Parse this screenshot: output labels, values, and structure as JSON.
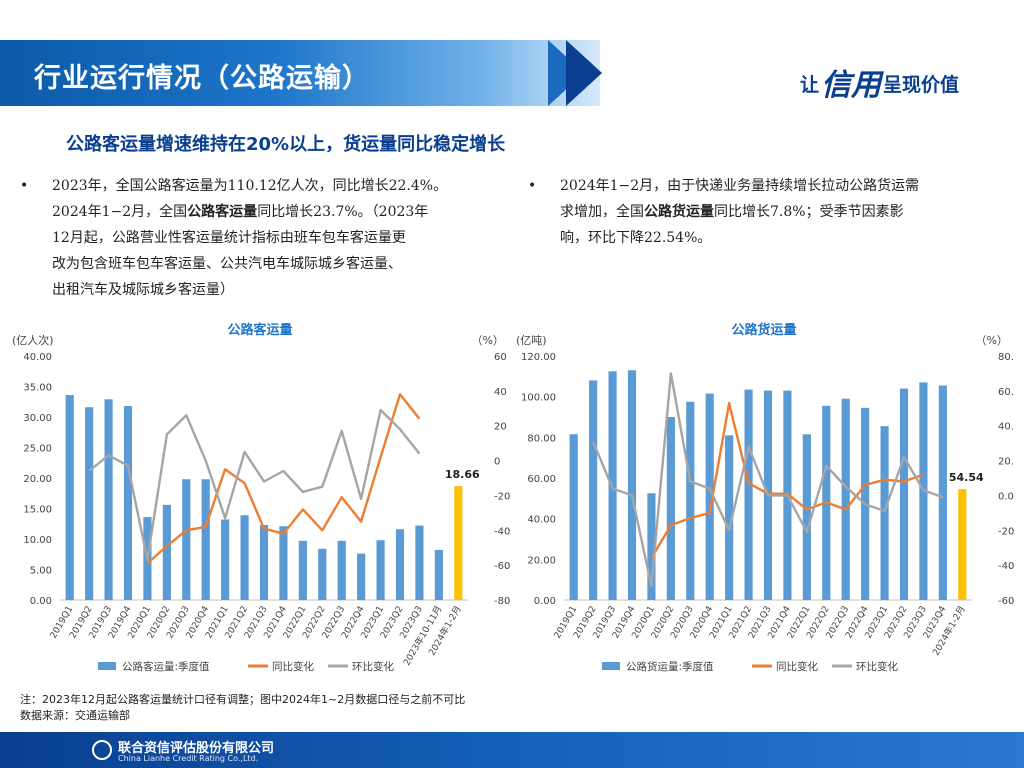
{
  "header": {
    "title": "行业运行情况（公路运输）"
  },
  "brand": {
    "prefix": "让",
    "big": "信用",
    "suffix": "呈现价值"
  },
  "subtitle": "公路客运量增速维持在20%以上，货运量同比稳定增长",
  "left_bullet": {
    "dot": "•",
    "line1": "2023年，全国公路客运量为110.12亿人次，同比增长22.4%。",
    "line2_pre": "2024年1−2月，全国",
    "line2_bold": "公路客运量",
    "line2_post": "同比增长23.7%。（2023年",
    "line3": "12月起，公路营业性客运量统计指标由班车包车客运量更",
    "line4": "改为包含班车包车客运量、公共汽电车城际城乡客运量、",
    "line5": "出租汽车及城际城乡客运量）"
  },
  "right_bullet": {
    "dot": "•",
    "line1": "2024年1−2月，由于快递业务量持续增长拉动公路货运需",
    "line2_pre": "求增加，全国",
    "line2_bold": "公路货运量",
    "line2_post": "同比增长7.8%；受季节因素影",
    "line3": "响，环比下降22.54%。"
  },
  "chart_data": [
    {
      "type": "bar",
      "title": "公路客运量",
      "ylabel_left": "(亿人次)",
      "ylabel_right": "（%）",
      "categories": [
        "2019Q1",
        "2019Q2",
        "2019Q3",
        "2019Q4",
        "2020Q1",
        "2020Q2",
        "2020Q3",
        "2020Q4",
        "2021Q1",
        "2021Q2",
        "2021Q3",
        "2021Q4",
        "2022Q1",
        "2022Q2",
        "2022Q3",
        "2022Q4",
        "2023Q1",
        "2023Q2",
        "2023Q3",
        "2023年10-11月",
        "2024年1-2月"
      ],
      "ylim_left": [
        0,
        40
      ],
      "yticks_left": [
        "0.00",
        "5.00",
        "10.00",
        "15.00",
        "20.00",
        "25.00",
        "30.00",
        "35.00",
        "40.00"
      ],
      "ylim_right": [
        -80,
        60
      ],
      "yticks_right": [
        "-80",
        "-60",
        "-40",
        "-20",
        "0",
        "20",
        "40",
        "60"
      ],
      "series": [
        {
          "name": "公路客运量:季度值",
          "axis": "left",
          "kind": "bar",
          "color": "#5b9bd5",
          "values": [
            33.6,
            31.6,
            32.9,
            31.8,
            13.6,
            15.6,
            19.8,
            19.8,
            13.2,
            13.9,
            12.3,
            12.1,
            9.7,
            8.4,
            9.7,
            7.6,
            9.8,
            11.6,
            12.2,
            8.2,
            18.66
          ]
        },
        {
          "name": "同比变化",
          "axis": "right",
          "kind": "line",
          "color": "#ed7d31",
          "values": [
            null,
            null,
            null,
            null,
            -59,
            -49,
            -40,
            -38,
            -5,
            -13,
            -39,
            -42,
            -28,
            -40,
            -21,
            -35,
            2,
            38,
            24,
            null,
            null
          ]
        },
        {
          "name": "环比变化",
          "axis": "right",
          "kind": "line",
          "color": "#a5a5a5",
          "values": [
            null,
            -6,
            3,
            -3,
            -57,
            15,
            26,
            0,
            -33,
            5,
            -12,
            -6,
            -18,
            -15,
            17,
            -22,
            29,
            18,
            4,
            null,
            null
          ]
        }
      ],
      "highlight": {
        "index": 20,
        "color": "#ffc000",
        "label": "18.66"
      },
      "legend": "bottom"
    },
    {
      "type": "bar",
      "title": "公路货运量",
      "ylabel_left": "(亿吨)",
      "ylabel_right": "（%）",
      "categories": [
        "2019Q1",
        "2019Q2",
        "2019Q3",
        "2019Q4",
        "2020Q1",
        "2020Q2",
        "2020Q3",
        "2020Q4",
        "2021Q1",
        "2021Q2",
        "2021Q3",
        "2021Q4",
        "2022Q1",
        "2022Q2",
        "2022Q3",
        "2022Q4",
        "2023Q1",
        "2023Q2",
        "2023Q3",
        "2023Q4",
        "2024年1-2月"
      ],
      "ylim_left": [
        0,
        120
      ],
      "yticks_left": [
        "0.00",
        "20.00",
        "40.00",
        "60.00",
        "80.00",
        "100.00",
        "120.00"
      ],
      "ylim_right": [
        -60,
        80
      ],
      "yticks_right": [
        "-60.00",
        "-40.00",
        "-20.00",
        "0.00",
        "20.00",
        "40.00",
        "60.00",
        "80.00"
      ],
      "series": [
        {
          "name": "公路货运量:季度值",
          "axis": "left",
          "kind": "bar",
          "color": "#5b9bd5",
          "values": [
            81.5,
            108,
            112.5,
            113,
            52.5,
            90,
            97.5,
            101.5,
            81,
            103.5,
            103,
            103,
            81.5,
            95.5,
            99,
            94.5,
            85.5,
            104,
            107,
            105.5,
            54.54
          ]
        },
        {
          "name": "同比变化",
          "axis": "right",
          "kind": "line",
          "color": "#ed7d31",
          "values": [
            null,
            null,
            null,
            null,
            -36,
            -17,
            -13,
            -10,
            53,
            7,
            1,
            1,
            -8,
            -4,
            -8,
            6,
            9,
            8,
            12,
            null,
            null
          ]
        },
        {
          "name": "环比变化",
          "axis": "right",
          "kind": "line",
          "color": "#a5a5a5",
          "values": [
            null,
            31,
            4,
            0,
            -52,
            70,
            8,
            4,
            -20,
            28,
            0,
            0,
            -21,
            17,
            5,
            -5,
            -9,
            22,
            3,
            -1,
            null
          ]
        }
      ],
      "highlight": {
        "index": 20,
        "color": "#ffc000",
        "label": "54.54"
      },
      "legend": "bottom"
    }
  ],
  "note": {
    "line1": "注：2023年12月起公路客运量统计口径有调整；图中2024年1~2月数据口径与之前不可比",
    "line2": "数据来源：交通运输部"
  },
  "footer": {
    "company_cn": "联合资信评估股份有限公司",
    "company_en": "China Lianhe Credit Rating Co.,Ltd."
  }
}
